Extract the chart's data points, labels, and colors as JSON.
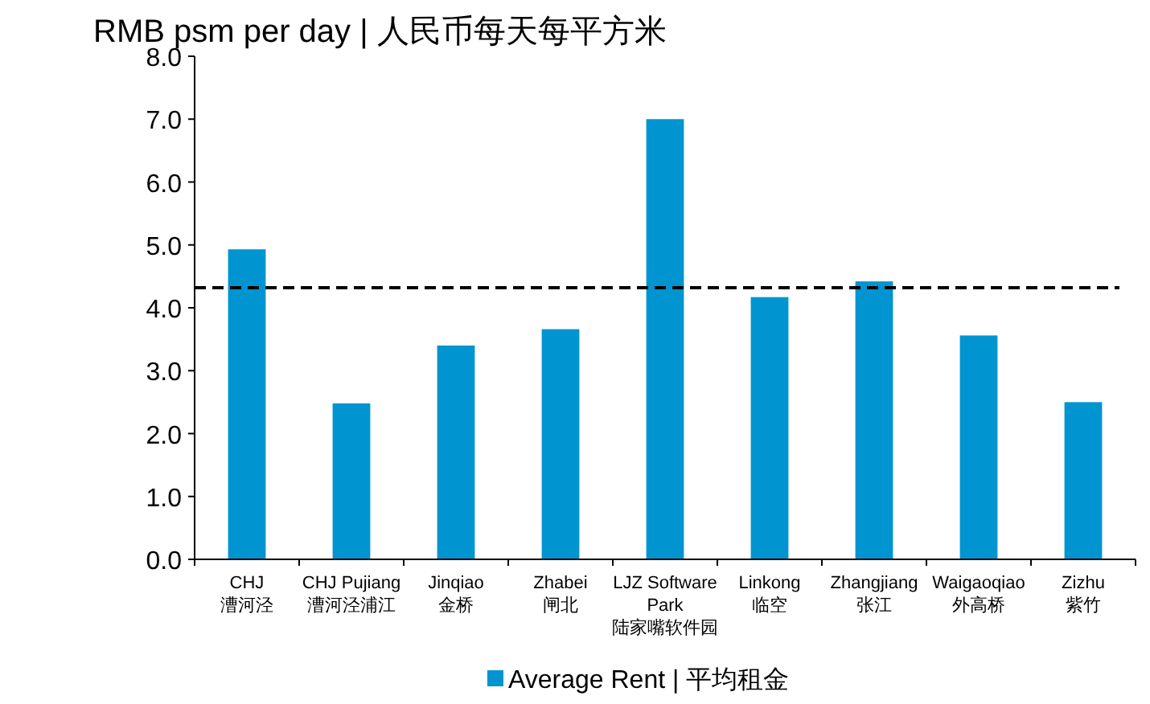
{
  "chart_data": {
    "type": "bar",
    "title": "RMB psm per day | 人民币每天每平方米",
    "categories": [
      "CHJ\n漕河泾",
      "CHJ Pujiang\n漕河泾浦江",
      "Jinqiao\n金桥",
      "Zhabei\n闸北",
      "LJZ Software\nPark\n陆家嘴软件园",
      "Linkong\n临空",
      "Zhangjiang\n张江",
      "Waigaoqiao\n外高桥",
      "Zizhu\n紫竹"
    ],
    "series": [
      {
        "name": "Average Rent | 平均租金",
        "color": "#0095d0",
        "values": [
          4.93,
          2.48,
          3.4,
          3.66,
          7.0,
          4.17,
          4.42,
          3.56,
          2.5
        ]
      }
    ],
    "ylim": [
      0,
      8
    ],
    "yticks": [
      {
        "value": 0,
        "label": "0.0"
      },
      {
        "value": 1,
        "label": "1.0"
      },
      {
        "value": 2,
        "label": "2.0"
      },
      {
        "value": 3,
        "label": "3.0"
      },
      {
        "value": 4,
        "label": "4.0"
      },
      {
        "value": 5,
        "label": "5.0"
      },
      {
        "value": 6,
        "label": "6.0"
      },
      {
        "value": 7,
        "label": "7.0"
      },
      {
        "value": 8,
        "label": "8.0"
      }
    ],
    "ref_lines": [
      {
        "axis": "y",
        "value": 4.32,
        "color": "#000000",
        "line_style": "dashed"
      }
    ],
    "grid": false,
    "legend": "bottom"
  }
}
